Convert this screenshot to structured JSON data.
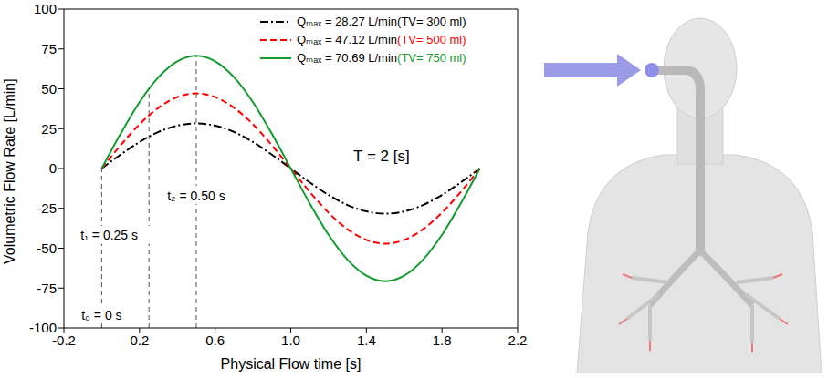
{
  "chart_data": {
    "type": "line",
    "x_label": "Physical Flow time [s]",
    "y_label": "Volumetric Flow Rate [L/min]",
    "x": [
      0,
      0.1,
      0.2,
      0.3,
      0.4,
      0.5,
      0.6,
      0.7,
      0.8,
      0.9,
      1.0,
      1.1,
      1.2,
      1.3,
      1.4,
      1.5,
      1.6,
      1.7,
      1.8,
      1.9,
      2.0
    ],
    "series": [
      {
        "name": "Qₘₐₓ = 28.27 L/min (TV= 300 ml)",
        "color": "#000000",
        "line_style": "dash_dot",
        "values": [
          0,
          8.7,
          16.6,
          22.9,
          26.9,
          28.3,
          26.9,
          22.9,
          16.6,
          8.7,
          0,
          -8.7,
          -16.6,
          -22.9,
          -26.9,
          -28.3,
          -26.9,
          -22.9,
          -16.6,
          -8.7,
          0
        ]
      },
      {
        "name": "Qₘₐₓ = 47.12 L/min (TV= 500 ml)",
        "color": "#ff0000",
        "line_style": "dashed",
        "values": [
          0,
          14.6,
          27.7,
          38.1,
          44.8,
          47.1,
          44.8,
          38.1,
          27.7,
          14.6,
          0,
          -14.6,
          -27.7,
          -38.1,
          -44.8,
          -47.1,
          -44.8,
          -38.1,
          -27.7,
          -14.6,
          0
        ]
      },
      {
        "name": "Qₘₐₓ = 70.69 L/min (TV= 750 ml)",
        "color": "#119b2b",
        "line_style": "solid",
        "values": [
          0,
          21.8,
          41.6,
          57.2,
          67.2,
          70.7,
          67.2,
          57.2,
          41.6,
          21.8,
          0,
          -21.8,
          -41.6,
          -57.2,
          -67.2,
          -70.7,
          -67.2,
          -57.2,
          -41.6,
          -21.8,
          0
        ]
      }
    ],
    "xlim": [
      -0.2,
      2.2
    ],
    "xticks": [
      -0.2,
      0.2,
      0.6,
      {
        "value": 1,
        "label": "1.0"
      },
      1.4,
      1.8,
      2.2
    ],
    "ylim": [
      -100,
      100
    ],
    "yticks": [
      -100,
      -75,
      -50,
      -25,
      0,
      25,
      50,
      75,
      100
    ],
    "grid": false,
    "legend": "upper right",
    "markers": [
      {
        "x": 0,
        "y_range": [
          -100,
          0
        ],
        "label": "t₀ = 0 s",
        "label_x": 0,
        "label_y": -92
      },
      {
        "x": 0.25,
        "y_range": [
          -100,
          50
        ],
        "label": "t₁ = 0.25 s",
        "label_x": 0.04,
        "label_y": -42
      },
      {
        "x": 0.5,
        "y_range": [
          -100,
          70.7
        ],
        "label": "t₂ = 0.50 s",
        "label_x": 0.5,
        "label_y": -17
      }
    ],
    "annotations": [
      {
        "text": "T = 2 [s]",
        "x": 1.48,
        "y": 8
      }
    ]
  }
}
